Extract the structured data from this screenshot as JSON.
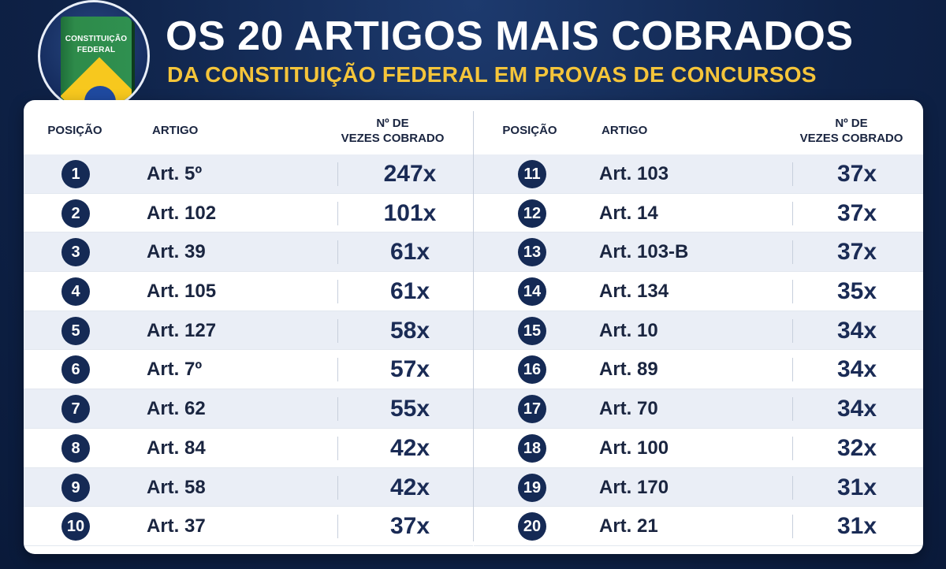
{
  "header": {
    "title": "OS 20 ARTIGOS MAIS COBRADOS",
    "subtitle": "DA CONSTITUIÇÃO FEDERAL EM PROVAS DE CONCURSOS",
    "logo_text_line1": "CONSTITUIÇÃO",
    "logo_text_line2": "FEDERAL"
  },
  "colors": {
    "background": "#0f2349",
    "title": "#ffffff",
    "subtitle": "#f5c53a",
    "badge": "#152a55",
    "row_alt": "#eaeef6"
  },
  "table": {
    "headers": {
      "position": "POSIÇÃO",
      "article": "ARTIGO",
      "count_line1": "Nº DE",
      "count_line2": "VEZES COBRADO"
    },
    "left_rows": [
      {
        "pos": "1",
        "article": "Art. 5º",
        "count": "247x"
      },
      {
        "pos": "2",
        "article": "Art. 102",
        "count": "101x"
      },
      {
        "pos": "3",
        "article": "Art. 39",
        "count": "61x"
      },
      {
        "pos": "4",
        "article": "Art. 105",
        "count": "61x"
      },
      {
        "pos": "5",
        "article": "Art. 127",
        "count": "58x"
      },
      {
        "pos": "6",
        "article": "Art. 7º",
        "count": "57x"
      },
      {
        "pos": "7",
        "article": "Art. 62",
        "count": "55x"
      },
      {
        "pos": "8",
        "article": "Art. 84",
        "count": "42x"
      },
      {
        "pos": "9",
        "article": "Art. 58",
        "count": "42x"
      },
      {
        "pos": "10",
        "article": "Art. 37",
        "count": "37x"
      }
    ],
    "right_rows": [
      {
        "pos": "11",
        "article": "Art. 103",
        "count": "37x"
      },
      {
        "pos": "12",
        "article": "Art. 14",
        "count": "37x"
      },
      {
        "pos": "13",
        "article": "Art. 103-B",
        "count": "37x"
      },
      {
        "pos": "14",
        "article": "Art. 134",
        "count": "35x"
      },
      {
        "pos": "15",
        "article": "Art. 10",
        "count": "34x"
      },
      {
        "pos": "16",
        "article": "Art. 89",
        "count": "34x"
      },
      {
        "pos": "17",
        "article": "Art. 70",
        "count": "34x"
      },
      {
        "pos": "18",
        "article": "Art. 100",
        "count": "32x"
      },
      {
        "pos": "19",
        "article": "Art. 170",
        "count": "31x"
      },
      {
        "pos": "20",
        "article": "Art. 21",
        "count": "31x"
      }
    ]
  }
}
